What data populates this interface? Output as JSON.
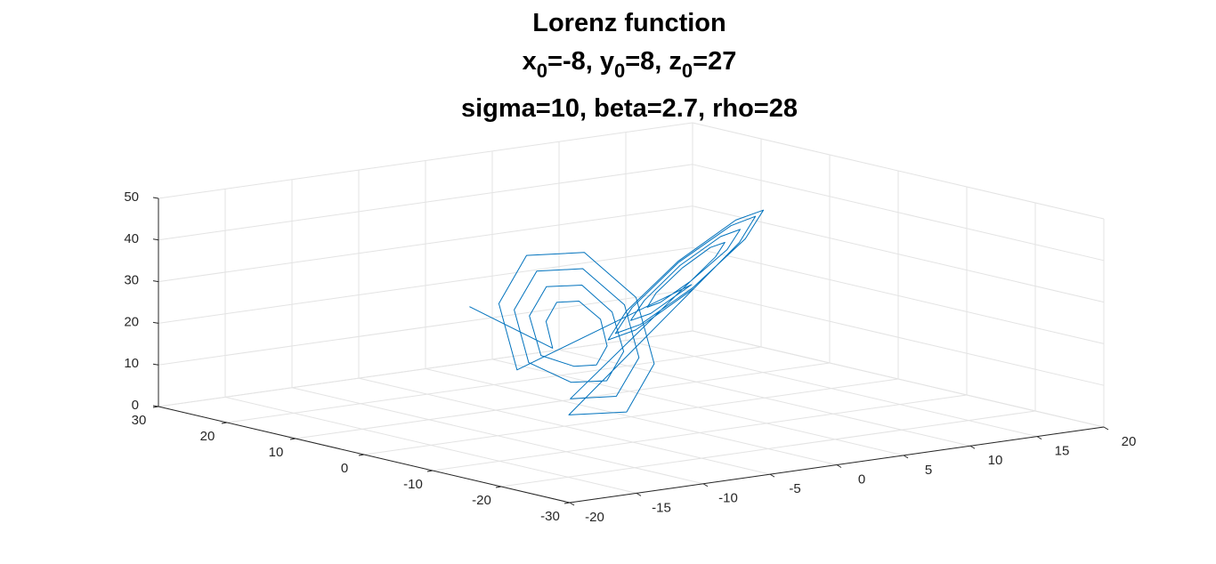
{
  "chart_data": {
    "type": "line3d",
    "title_lines": [
      [
        "Lorenz function"
      ],
      [
        "x",
        "0",
        "=-8, y",
        "0",
        "=8, z",
        "0",
        "=27"
      ],
      [
        "sigma=10, beta=2.7, rho=28"
      ]
    ],
    "color": "#0072bd",
    "grid": true,
    "xlim": [
      -20,
      20
    ],
    "xticks": [
      -20,
      -15,
      -10,
      -5,
      0,
      5,
      10,
      15,
      20
    ],
    "ylim": [
      -30,
      30
    ],
    "yticks": [
      -30,
      -20,
      -10,
      0,
      10,
      20,
      30
    ],
    "zlim": [
      0,
      50
    ],
    "zticks": [
      0,
      10,
      20,
      30,
      40,
      50
    ],
    "x": [
      -8,
      -12.4,
      -11.2,
      -8.4,
      -5.6,
      -4.4,
      -5.6,
      -8.4,
      -11.2,
      -14.4,
      -12.7,
      -8.4,
      -4.1,
      -2.4,
      -4.1,
      -8.4,
      -12.7,
      -16.4,
      -14.1,
      -8.4,
      -2.7,
      -0.4,
      -2.7,
      -8.4,
      -14.1,
      13.4,
      12,
      8.4,
      4.9,
      3.4,
      4.9,
      8.4,
      12,
      15.4,
      13.4,
      8.4,
      3.4,
      1.4,
      3.4,
      8.4,
      13.4,
      -18.4,
      -15.5,
      -8.4,
      -1.3,
      1.6,
      -1.3,
      -8.4,
      -15.5,
      17.4,
      14.8,
      8.4,
      2,
      -0.6,
      2,
      8.4,
      14.8,
      18.4,
      15.5,
      8.4,
      1.3,
      -1.6,
      1.3,
      8.4,
      15.5
    ],
    "y": [
      8,
      -12.7,
      -9.4,
      -5.5,
      -3.3,
      -4.1,
      -7.4,
      -11.3,
      -13.5,
      -14.9,
      -9.9,
      -4,
      -0.8,
      -1.9,
      -6.9,
      -12.8,
      -16,
      -17,
      -10.4,
      -2.6,
      1.8,
      0.2,
      -6.4,
      -14.2,
      -18.6,
      13.8,
      9.7,
      4.8,
      2.1,
      3,
      7.2,
      12.1,
      14.8,
      16,
      10.2,
      3.3,
      -0.5,
      0.8,
      6.7,
      13.5,
      17.3,
      -19.2,
      -10.9,
      -1.1,
      4.3,
      2.4,
      -5.9,
      -15.7,
      -21.1,
      18.1,
      10.7,
      1.8,
      -3,
      -1.3,
      6.2,
      15,
      19.8,
      19.2,
      10.9,
      1.1,
      -4.3,
      -2.4,
      5.9,
      15.7,
      21.1
    ],
    "z": [
      27,
      27,
      31.6,
      33.4,
      31.6,
      27,
      22.4,
      20.6,
      22.4,
      27,
      33.8,
      36.6,
      33.8,
      27,
      20.2,
      17.4,
      20.2,
      27,
      36.1,
      39.8,
      36.1,
      27,
      17.9,
      14.2,
      17.9,
      27,
      32.7,
      35,
      32.7,
      27,
      21.3,
      19,
      21.3,
      27,
      35,
      38.2,
      35,
      27,
      19,
      15.8,
      19,
      27,
      38.4,
      43,
      38.4,
      27,
      15.6,
      11,
      15.6,
      27,
      37.3,
      41.4,
      37.3,
      27,
      16.7,
      12.6,
      16.7,
      27,
      38.4,
      43,
      38.4,
      27,
      15.6,
      11,
      15.6
    ]
  }
}
